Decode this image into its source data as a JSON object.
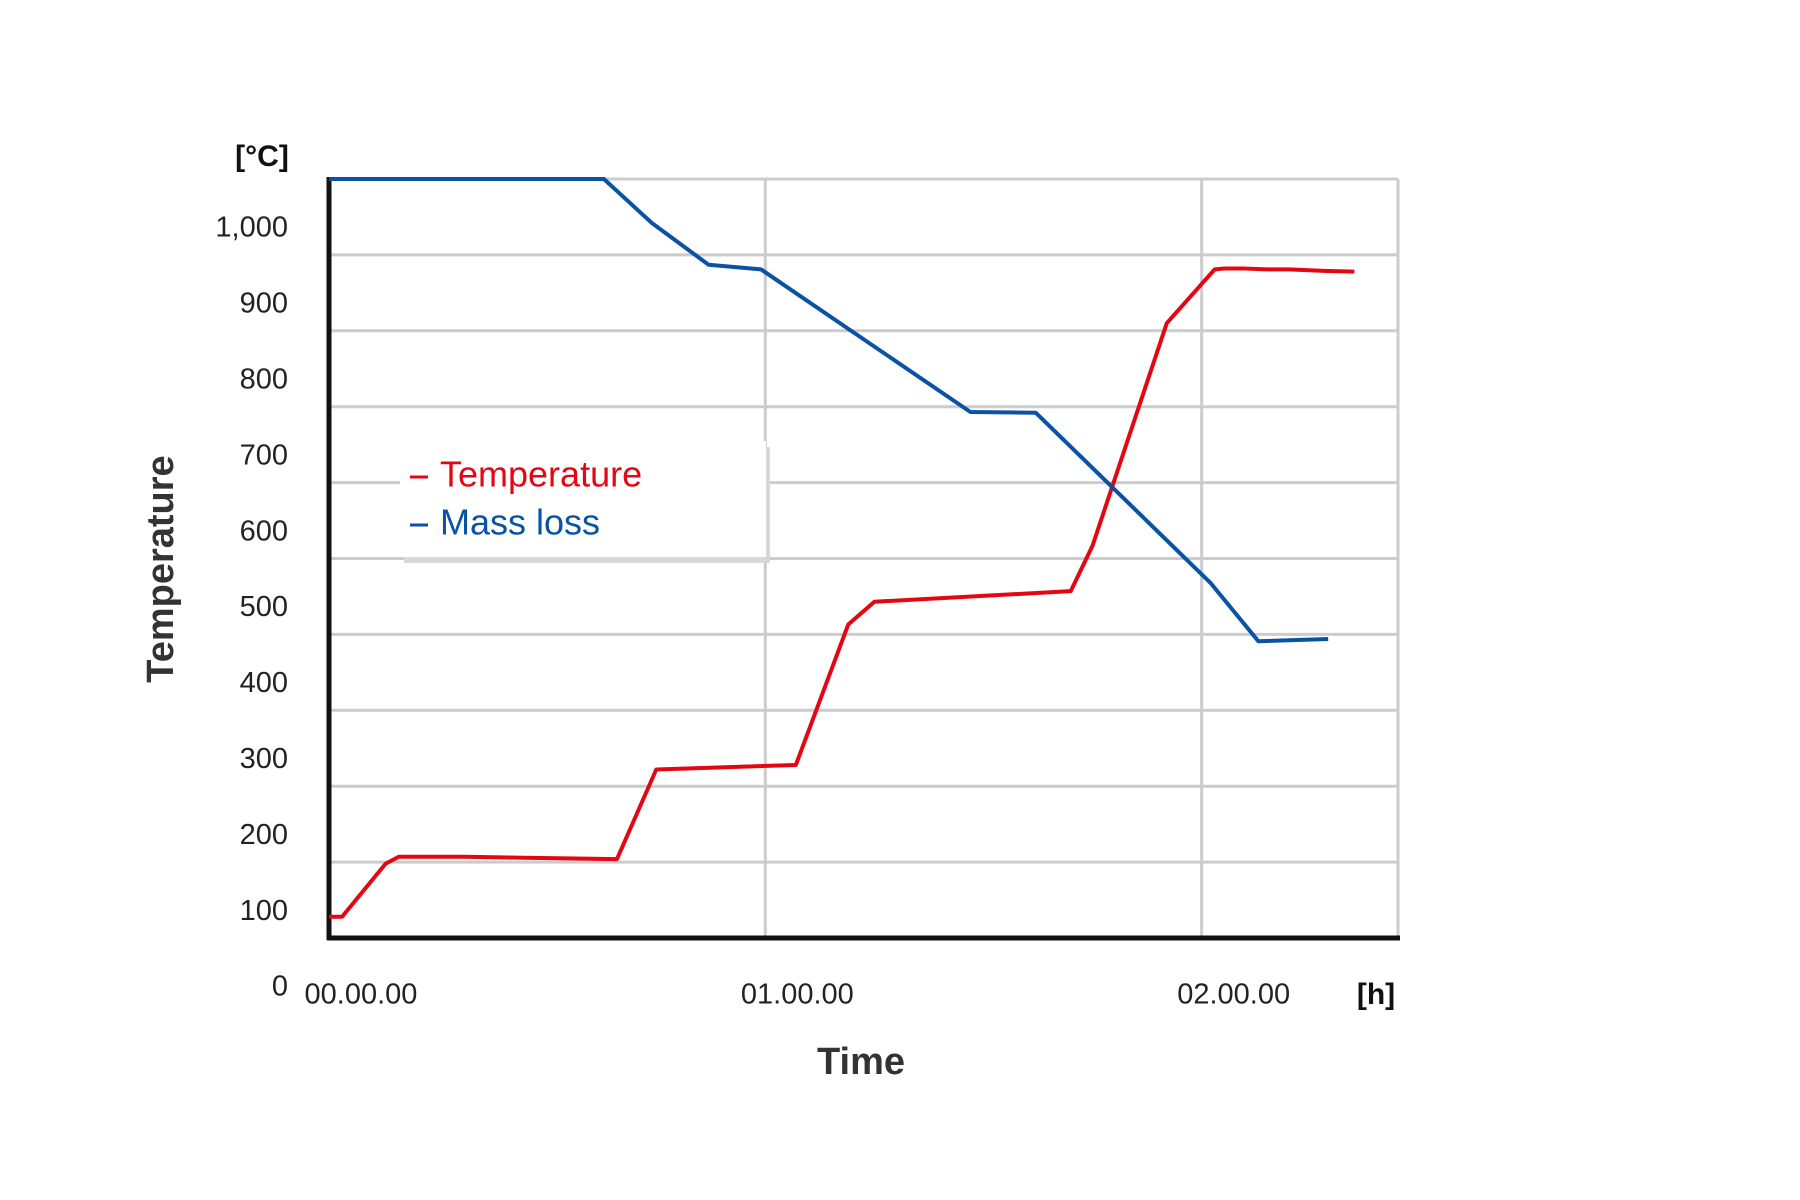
{
  "chart_data": {
    "type": "line",
    "x_label": "Time",
    "y_label": "Temperature",
    "y_unit": "[°C]",
    "x_unit": "[h]",
    "xlim": [
      0,
      2.45
    ],
    "xticks": [
      {
        "value": 0,
        "label": "00.00.00"
      },
      {
        "value": 1,
        "label": "01.00.00"
      },
      {
        "value": 2,
        "label": "02.00.00"
      }
    ],
    "ylim": [
      0,
      1000
    ],
    "yticks": [
      0,
      100,
      200,
      300,
      400,
      500,
      600,
      700,
      800,
      900,
      {
        "value": 1000,
        "label": "1,000"
      }
    ],
    "grid": true,
    "legend": "left",
    "series": [
      {
        "name": "Temperature",
        "color": "#e30613",
        "x": [
          0,
          0.03,
          0.13,
          0.16,
          0.31,
          0.66,
          0.75,
          1.07,
          1.19,
          1.25,
          1.7,
          1.75,
          1.92,
          2.03,
          2.05,
          2.1,
          2.15,
          2.2,
          2.28,
          2.35
        ],
        "values": [
          28,
          28,
          98,
          107,
          107,
          104,
          222,
          228,
          413,
          443,
          457,
          517,
          810,
          881,
          882,
          882,
          881,
          881,
          879,
          878
        ]
      },
      {
        "name": "Mass loss",
        "color": "#0a52a5",
        "x": [
          0,
          0.63,
          0.74,
          0.87,
          0.99,
          1.47,
          1.62,
          2.02,
          2.13,
          2.29
        ],
        "values": [
          1000,
          1000,
          942,
          887,
          881,
          693,
          692,
          468,
          391,
          394
        ]
      }
    ]
  }
}
